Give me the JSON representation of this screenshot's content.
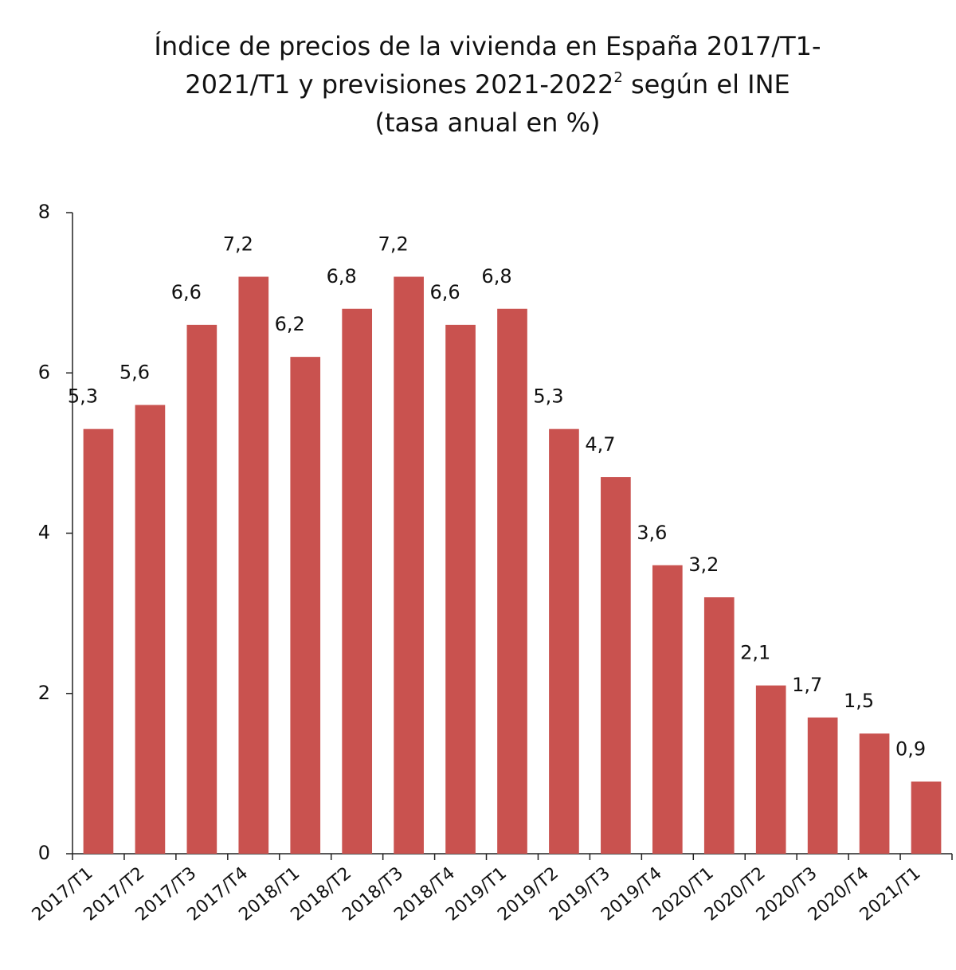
{
  "chart_data": {
    "type": "bar",
    "title": [
      "Índice de precios de la vivienda en España 2017/T1-",
      "2021/T1 y previsiones 2021-2022",
      "2",
      " según el INE",
      "(tasa anual en %)"
    ],
    "categories": [
      "2017/T1",
      "2017/T2",
      "2017/T3",
      "2017/T4",
      "2018/T1",
      "2018/T2",
      "2018/T3",
      "2018/T4",
      "2019/T1",
      "2019/T2",
      "2019/T3",
      "2019/T4",
      "2020/T1",
      "2020/T2",
      "2020/T3",
      "2020/T4",
      "2021/T1"
    ],
    "values": [
      5.3,
      5.6,
      6.6,
      7.2,
      6.2,
      6.8,
      7.2,
      6.6,
      6.8,
      5.3,
      4.7,
      3.6,
      3.2,
      2.1,
      1.7,
      1.5,
      0.9
    ],
    "value_labels": [
      "5,3",
      "5,6",
      "6,6",
      "7,2",
      "6,2",
      "6,8",
      "7,2",
      "6,6",
      "6,8",
      "5,3",
      "4,7",
      "3,6",
      "3,2",
      "2,1",
      "1,7",
      "1,5",
      "0,9"
    ],
    "color": "#c9524f",
    "ylim": [
      0,
      8
    ],
    "yticks": [
      0,
      2,
      4,
      6,
      8
    ],
    "grid": false
  }
}
